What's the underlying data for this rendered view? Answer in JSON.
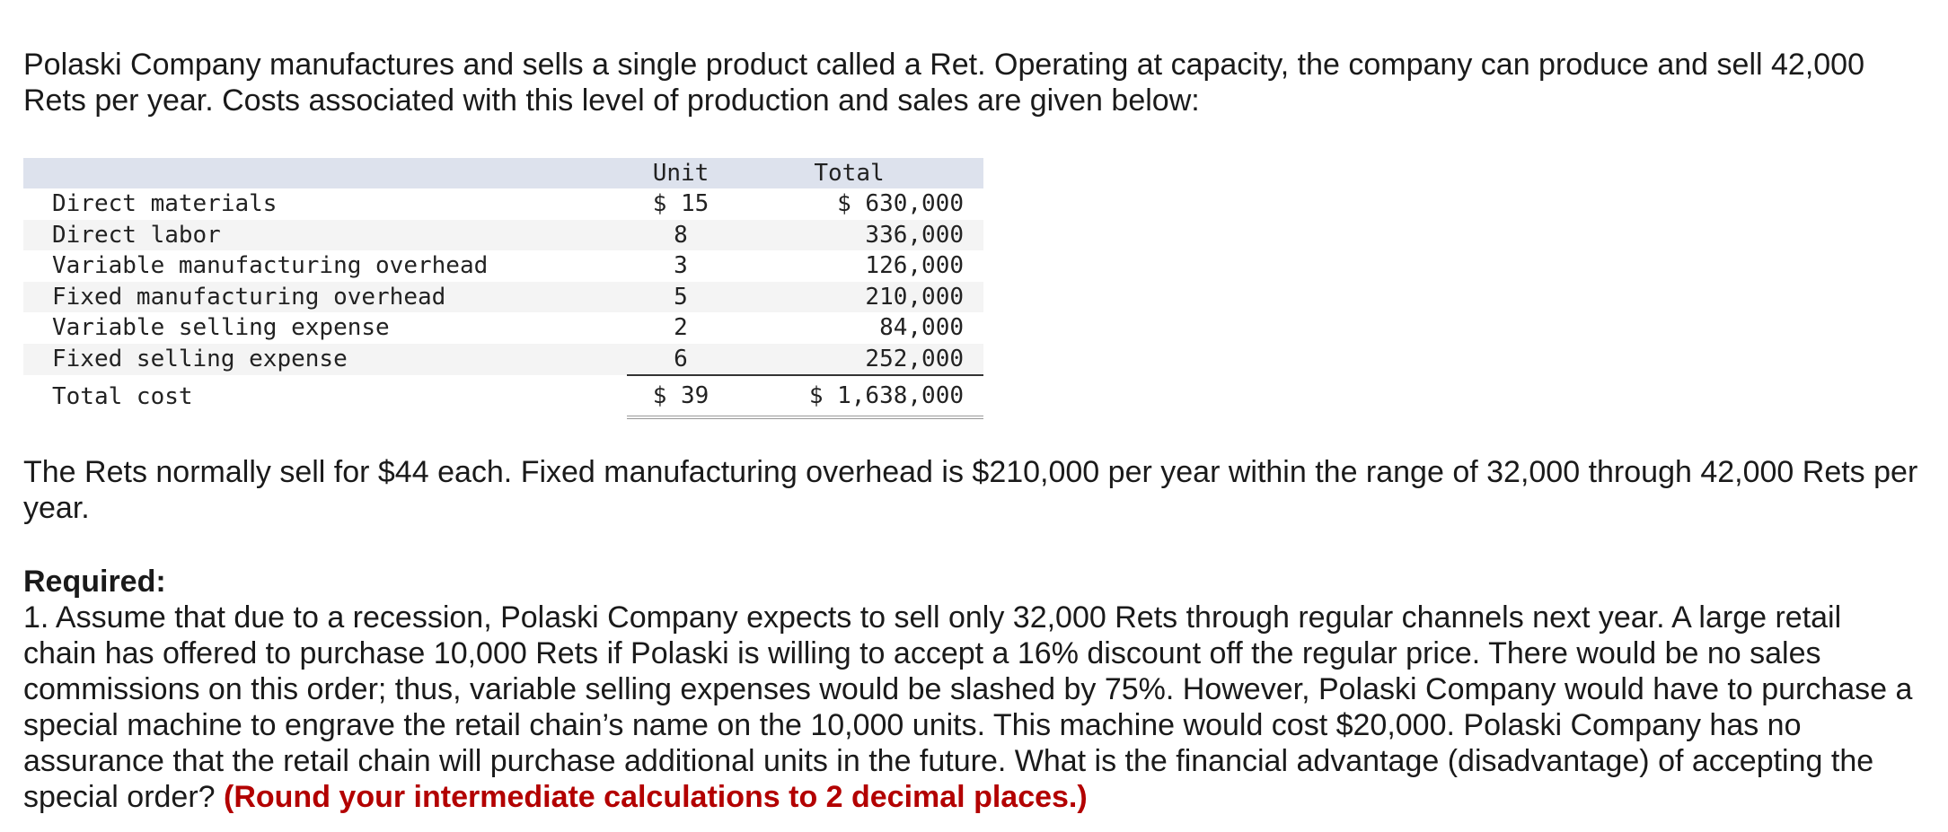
{
  "intro": "Polaski Company manufactures and sells a single product called a Ret. Operating at capacity, the company can produce and sell 42,000 Rets per year. Costs associated with this level of production and sales are given below:",
  "table": {
    "headers": {
      "label": "",
      "unit": "Unit",
      "total": "Total"
    },
    "rows": [
      {
        "label": "Direct materials",
        "unit": "$ 15",
        "total": "$ 630,000"
      },
      {
        "label": "Direct labor",
        "unit": "8",
        "total": "336,000"
      },
      {
        "label": "Variable manufacturing overhead",
        "unit": "3",
        "total": "126,000"
      },
      {
        "label": "Fixed manufacturing overhead",
        "unit": "5",
        "total": "210,000"
      },
      {
        "label": "Variable selling expense",
        "unit": "2",
        "total": "84,000"
      },
      {
        "label": "Fixed selling expense",
        "unit": "6",
        "total": "252,000"
      }
    ],
    "total_row": {
      "label": "Total cost",
      "unit": "$ 39",
      "total": "$ 1,638,000"
    }
  },
  "rets_note": "The Rets normally sell for $44 each. Fixed manufacturing overhead is $210,000 per year within the range of 32,000 through 42,000 Rets per year.",
  "required": {
    "heading": "Required:",
    "question": "1. Assume that due to a recession, Polaski Company expects to sell only 32,000 Rets through regular channels next year. A large retail chain has offered to purchase 10,000 Rets if Polaski is willing to accept a 16% discount off the regular price. There would be no sales commissions on this order; thus, variable selling expenses would be slashed by 75%. However, Polaski Company would have to purchase a special machine to engrave the retail chain’s name on the 10,000 units. This machine would cost $20,000. Polaski Company has no assurance that the retail chain will purchase additional units in the future. What is the financial advantage (disadvantage) of accepting the special order?",
    "hint": "(Round your intermediate calculations to 2 decimal places.)"
  }
}
